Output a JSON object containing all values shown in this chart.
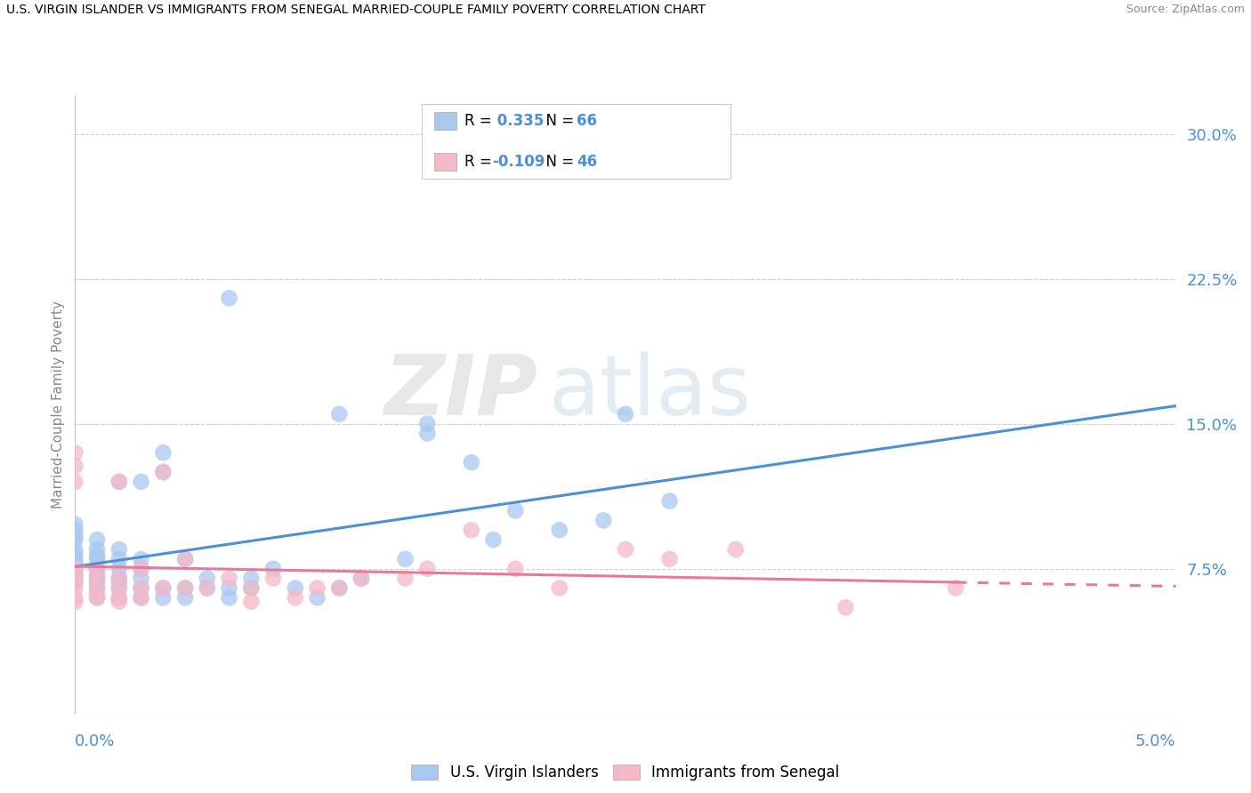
{
  "title": "U.S. VIRGIN ISLANDER VS IMMIGRANTS FROM SENEGAL MARRIED-COUPLE FAMILY POVERTY CORRELATION CHART",
  "source": "Source: ZipAtlas.com",
  "ylabel": "Married-Couple Family Poverty",
  "yticks_labels": [
    "7.5%",
    "15.0%",
    "22.5%",
    "30.0%"
  ],
  "ytick_vals": [
    0.075,
    0.15,
    0.225,
    0.3
  ],
  "xrange": [
    0.0,
    0.05
  ],
  "yrange": [
    0.0,
    0.32
  ],
  "legend1_r": " 0.335",
  "legend1_n": "66",
  "legend2_r": "-0.109",
  "legend2_n": "46",
  "scatter1_color": "#a8c8f0",
  "scatter2_color": "#f5b8c8",
  "line1_color": "#4a90d9",
  "line2_color": "#e8799a",
  "watermark1": "ZIP",
  "watermark2": "atlas",
  "legend_series1": "U.S. Virgin Islanders",
  "legend_series2": "Immigrants from Senegal",
  "series1_x": [
    0.0,
    0.0,
    0.0,
    0.0,
    0.0,
    0.0,
    0.0,
    0.0,
    0.0,
    0.0,
    0.0,
    0.0,
    0.001,
    0.001,
    0.001,
    0.001,
    0.001,
    0.001,
    0.001,
    0.001,
    0.001,
    0.001,
    0.002,
    0.002,
    0.002,
    0.002,
    0.002,
    0.002,
    0.002,
    0.002,
    0.003,
    0.003,
    0.003,
    0.003,
    0.003,
    0.003,
    0.004,
    0.004,
    0.004,
    0.004,
    0.005,
    0.005,
    0.005,
    0.006,
    0.006,
    0.007,
    0.007,
    0.007,
    0.008,
    0.008,
    0.009,
    0.01,
    0.011,
    0.012,
    0.012,
    0.013,
    0.015,
    0.016,
    0.016,
    0.018,
    0.019,
    0.02,
    0.022,
    0.024,
    0.025,
    0.027
  ],
  "series1_y": [
    0.068,
    0.07,
    0.072,
    0.075,
    0.078,
    0.08,
    0.082,
    0.085,
    0.09,
    0.092,
    0.095,
    0.098,
    0.06,
    0.065,
    0.068,
    0.07,
    0.072,
    0.075,
    0.08,
    0.082,
    0.085,
    0.09,
    0.06,
    0.065,
    0.068,
    0.07,
    0.075,
    0.08,
    0.085,
    0.12,
    0.06,
    0.065,
    0.07,
    0.075,
    0.08,
    0.12,
    0.06,
    0.065,
    0.125,
    0.135,
    0.06,
    0.065,
    0.08,
    0.065,
    0.07,
    0.06,
    0.065,
    0.215,
    0.065,
    0.07,
    0.075,
    0.065,
    0.06,
    0.065,
    0.155,
    0.07,
    0.08,
    0.145,
    0.15,
    0.13,
    0.09,
    0.105,
    0.095,
    0.1,
    0.155,
    0.11
  ],
  "series2_x": [
    0.0,
    0.0,
    0.0,
    0.0,
    0.0,
    0.0,
    0.0,
    0.0,
    0.0,
    0.0,
    0.001,
    0.001,
    0.001,
    0.001,
    0.001,
    0.002,
    0.002,
    0.002,
    0.002,
    0.002,
    0.003,
    0.003,
    0.003,
    0.004,
    0.004,
    0.005,
    0.005,
    0.006,
    0.007,
    0.008,
    0.008,
    0.009,
    0.01,
    0.011,
    0.012,
    0.013,
    0.015,
    0.016,
    0.018,
    0.02,
    0.022,
    0.025,
    0.027,
    0.03,
    0.035,
    0.04
  ],
  "series2_y": [
    0.058,
    0.06,
    0.065,
    0.068,
    0.07,
    0.072,
    0.075,
    0.12,
    0.128,
    0.135,
    0.06,
    0.062,
    0.065,
    0.07,
    0.075,
    0.058,
    0.06,
    0.065,
    0.07,
    0.12,
    0.06,
    0.065,
    0.075,
    0.065,
    0.125,
    0.065,
    0.08,
    0.065,
    0.07,
    0.058,
    0.065,
    0.07,
    0.06,
    0.065,
    0.065,
    0.07,
    0.07,
    0.075,
    0.095,
    0.075,
    0.065,
    0.085,
    0.08,
    0.085,
    0.055,
    0.065
  ]
}
